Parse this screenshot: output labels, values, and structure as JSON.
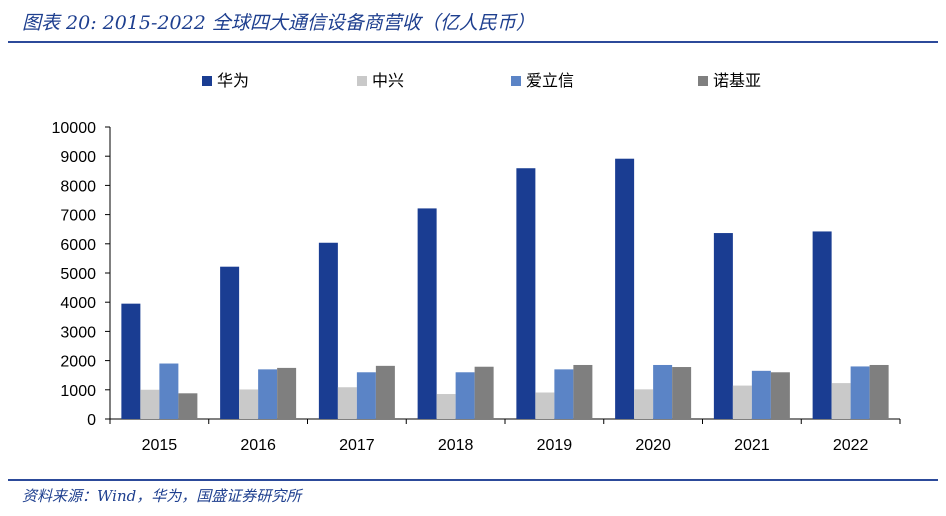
{
  "header": {
    "title": "图表 20: 2015-2022 全球四大通信设备商营收（亿人民币）"
  },
  "footer": {
    "source": "资料来源：Wind，华为，国盛证券研究所"
  },
  "chart_data": {
    "type": "bar",
    "categories": [
      "2015",
      "2016",
      "2017",
      "2018",
      "2019",
      "2020",
      "2021",
      "2022"
    ],
    "series": [
      {
        "name": "华为",
        "color": "#1a3d92",
        "values": [
          3950,
          5216,
          6036,
          7212,
          8588,
          8914,
          6368,
          6423
        ]
      },
      {
        "name": "中兴",
        "color": "#c9c9c9",
        "values": [
          1001,
          1012,
          1088,
          855,
          907,
          1015,
          1145,
          1230
        ]
      },
      {
        "name": "爱立信",
        "color": "#5b84c6",
        "values": [
          1900,
          1700,
          1600,
          1600,
          1700,
          1850,
          1650,
          1800
        ]
      },
      {
        "name": "诺基亚",
        "color": "#7f7f7f",
        "values": [
          880,
          1750,
          1820,
          1790,
          1850,
          1780,
          1600,
          1850
        ]
      }
    ],
    "ylim": [
      0,
      10000
    ],
    "yticks": [
      0,
      1000,
      2000,
      3000,
      4000,
      5000,
      6000,
      7000,
      8000,
      9000,
      10000
    ],
    "legend_position": "top",
    "grid": false
  }
}
